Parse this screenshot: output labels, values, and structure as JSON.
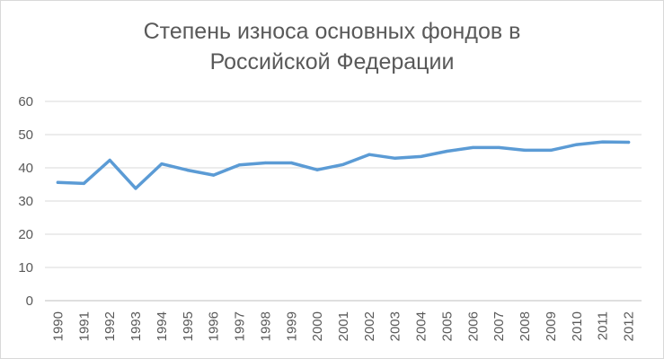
{
  "chart_data": {
    "type": "line",
    "title_line1": "Степень износа основных фондов в",
    "title_line2": "Российской Федерации",
    "xlabel": "",
    "ylabel": "",
    "x": [
      "1990",
      "1991",
      "1992",
      "1993",
      "1994",
      "1995",
      "1996",
      "1997",
      "1998",
      "1999",
      "2000",
      "2001",
      "2002",
      "2003",
      "2004",
      "2005",
      "2006",
      "2007",
      "2008",
      "2009",
      "2010",
      "2011",
      "2012"
    ],
    "series": [
      {
        "values": [
          35.6,
          35.3,
          42.3,
          33.8,
          41.2,
          39.3,
          37.8,
          40.9,
          41.5,
          41.5,
          39.4,
          41.0,
          44.0,
          42.9,
          43.4,
          45.0,
          46.1,
          46.1,
          45.3,
          45.3,
          47.0,
          47.8,
          47.7
        ],
        "color": "#5b9bd5"
      }
    ],
    "ylim": [
      0,
      60
    ],
    "yticks": [
      0,
      10,
      20,
      30,
      40,
      50,
      60
    ],
    "grid": true,
    "gridColor": "#d9d9d9",
    "legend": "none"
  }
}
